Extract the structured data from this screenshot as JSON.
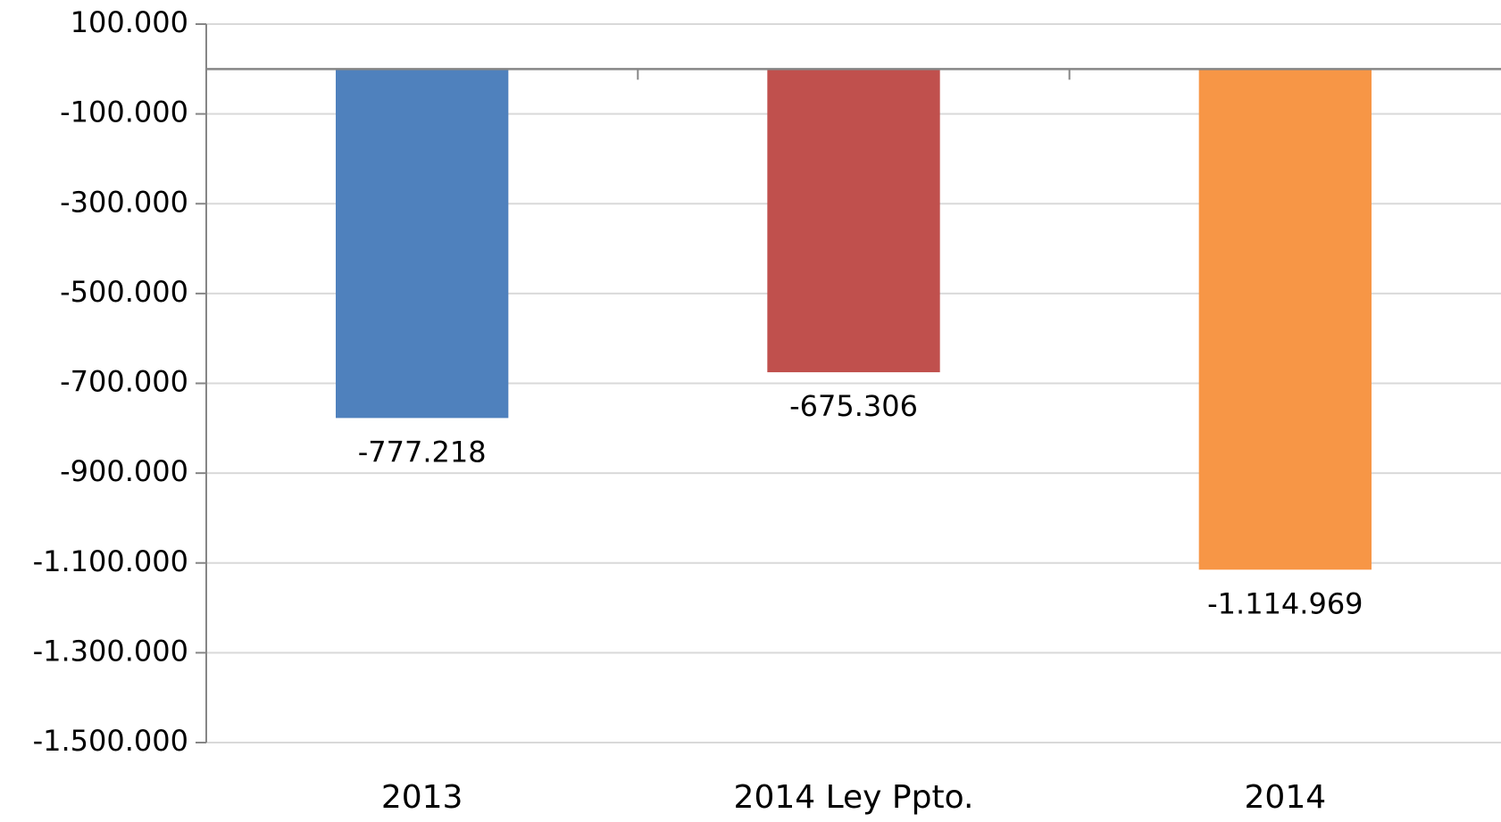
{
  "chart_data": {
    "type": "bar",
    "categories": [
      "2013",
      "2014 Ley Ppto.",
      "2014"
    ],
    "values": [
      -777218,
      -675306,
      -1114969
    ],
    "value_labels": [
      "-777.218",
      "-675.306",
      "-1.114.969"
    ],
    "colors": [
      "#4f81bd",
      "#c0504d",
      "#f79646"
    ],
    "ylim": [
      -1500000,
      100000
    ],
    "yticks": [
      {
        "value": 100000,
        "label": "100.000"
      },
      {
        "value": -100000,
        "label": "-100.000"
      },
      {
        "value": -300000,
        "label": "-300.000"
      },
      {
        "value": -500000,
        "label": "-500.000"
      },
      {
        "value": -700000,
        "label": "-700.000"
      },
      {
        "value": -900000,
        "label": "-900.000"
      },
      {
        "value": -1100000,
        "label": "-1.100.000"
      },
      {
        "value": -1300000,
        "label": "-1.300.000"
      },
      {
        "value": -1500000,
        "label": "-1.500.000"
      }
    ],
    "grid": true
  }
}
